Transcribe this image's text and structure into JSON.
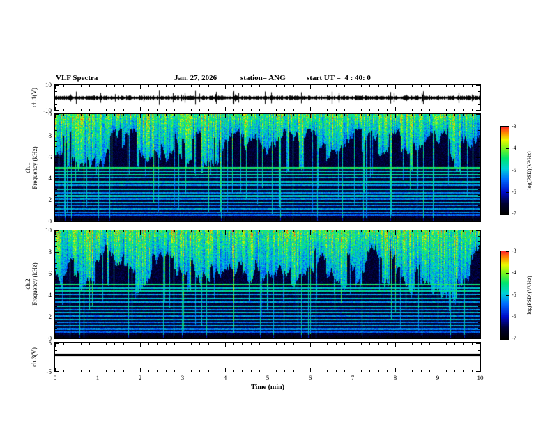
{
  "header": {
    "title": "VLF Spectra",
    "date": "Jan. 27, 2026",
    "station": "station= ANG",
    "start_ut": "start UT =  4 : 40: 0"
  },
  "axes": {
    "x_label": "Time (min)",
    "x_ticks": [
      "0",
      "1",
      "2",
      "3",
      "4",
      "5",
      "6",
      "7",
      "8",
      "9",
      "10"
    ],
    "x_minor_per_major": 5,
    "ch1_wave": {
      "label": "ch.1(V)",
      "ylim": [
        -10,
        10
      ],
      "major_values": [
        10,
        0,
        -10
      ],
      "minor_values": [
        5,
        -5
      ],
      "labeled_values": [
        10,
        -10
      ],
      "tick_labels": [
        "10",
        "-10"
      ]
    },
    "ch1_spec": {
      "label_line1": "ch.1",
      "label_line2": "Frequency (kHz)",
      "ylim": [
        0,
        10
      ],
      "major_values": [
        0,
        2,
        4,
        6,
        8,
        10
      ],
      "minor_step": 0.5,
      "labeled_values": [
        10,
        8,
        6,
        4,
        2,
        0
      ],
      "tick_labels": [
        "10",
        "8",
        "6",
        "4",
        "2",
        "0"
      ]
    },
    "ch2_spec": {
      "label_line1": "ch.2",
      "label_line2": "Frequency (kHz)",
      "ylim": [
        0,
        10
      ],
      "major_values": [
        0,
        2,
        4,
        6,
        8,
        10
      ],
      "minor_step": 0.5,
      "labeled_values": [
        10,
        8,
        6,
        4,
        2,
        0
      ],
      "tick_labels": [
        "10",
        "8",
        "6",
        "4",
        "2",
        "0"
      ]
    },
    "ch3_wave": {
      "label": "ch.3(V)",
      "ylim": [
        -5,
        5
      ],
      "major_values": [
        5,
        0,
        -5
      ],
      "minor_values": [
        2.5,
        -2.5
      ],
      "labeled_values": [
        5,
        -5
      ],
      "tick_labels": [
        "5",
        "-5"
      ]
    }
  },
  "colorbar": {
    "label": "log(PSD)(V²/Hz)",
    "tick_labels": [
      "-3",
      "-4",
      "-5",
      "-6",
      "-7"
    ],
    "tick_values": [
      -3,
      -4,
      -5,
      -6,
      -7
    ],
    "range": [
      -7,
      -3
    ]
  },
  "chart_data": [
    {
      "type": "line",
      "name": "ch1_waveform",
      "ylabel": "ch.1(V)",
      "xlabel": "Time (min)",
      "xlim": [
        0,
        10
      ],
      "ylim": [
        -10,
        10
      ],
      "baseline": 0,
      "noise_amplitude_v": 1.5,
      "trace_style": "noise",
      "description": "Continuous broadband noise trace centered on 0 V, ~±1.5 V envelope with sparse spikes to roughly ±6 V across the full 10 minutes."
    },
    {
      "type": "heatmap",
      "name": "ch1_spectrogram",
      "channel": "ch.1",
      "ylabel": "Frequency (kHz)",
      "xlabel": "Time (min)",
      "xlim": [
        0,
        10
      ],
      "ylim": [
        0,
        10
      ],
      "value_label": "log(PSD)(V²/Hz)",
      "value_range": [
        -7,
        -3
      ],
      "emission_lines_khz": [
        {
          "f": 5.0,
          "v": 0.62
        },
        {
          "f": 4.7,
          "v": 0.5
        },
        {
          "f": 4.4,
          "v": 0.55
        },
        {
          "f": 4.1,
          "v": 0.45
        },
        {
          "f": 3.7,
          "v": 0.5
        },
        {
          "f": 3.4,
          "v": 0.44
        },
        {
          "f": 3.0,
          "v": 0.5
        },
        {
          "f": 2.7,
          "v": 0.42
        },
        {
          "f": 2.4,
          "v": 0.48
        },
        {
          "f": 2.1,
          "v": 0.42
        },
        {
          "f": 1.8,
          "v": 0.46
        },
        {
          "f": 1.5,
          "v": 0.4
        },
        {
          "f": 1.2,
          "v": 0.44
        },
        {
          "f": 0.9,
          "v": 0.4
        },
        {
          "f": 0.6,
          "v": 0.36
        }
      ],
      "description": "Dense vertical sferic/tweek streaks (cyan-green-yellow, PSD ~1e-5 to 1e-3) filling ~5-10 kHz with variable lower extent; dark blue/black background below ~5 kHz (PSD ~1e-7) crossed by narrow horizontal emission lines and occasional full-height impulses."
    },
    {
      "type": "heatmap",
      "name": "ch2_spectrogram",
      "channel": "ch.2",
      "ylabel": "Frequency (kHz)",
      "xlabel": "Time (min)",
      "xlim": [
        0,
        10
      ],
      "ylim": [
        0,
        10
      ],
      "value_label": "log(PSD)(V²/Hz)",
      "value_range": [
        -7,
        -3
      ],
      "emission_lines_khz": [
        {
          "f": 5.0,
          "v": 0.62
        },
        {
          "f": 4.7,
          "v": 0.5
        },
        {
          "f": 4.4,
          "v": 0.55
        },
        {
          "f": 4.1,
          "v": 0.45
        },
        {
          "f": 3.7,
          "v": 0.5
        },
        {
          "f": 3.4,
          "v": 0.44
        },
        {
          "f": 3.0,
          "v": 0.5
        },
        {
          "f": 2.7,
          "v": 0.42
        },
        {
          "f": 2.4,
          "v": 0.48
        },
        {
          "f": 2.1,
          "v": 0.42
        },
        {
          "f": 1.8,
          "v": 0.46
        },
        {
          "f": 1.5,
          "v": 0.4
        },
        {
          "f": 1.2,
          "v": 0.44
        },
        {
          "f": 0.9,
          "v": 0.4
        },
        {
          "f": 0.6,
          "v": 0.36
        }
      ],
      "description": "Same structure as ch.1 spectrogram: bright streaked 5-10 kHz band, dark sub-5 kHz region with horizontal emission lines."
    },
    {
      "type": "line",
      "name": "ch3_waveform",
      "ylabel": "ch.3(V)",
      "xlim": [
        0,
        10
      ],
      "ylim": [
        -5,
        5
      ],
      "baseline": 0.8,
      "noise_amplitude_v": 0,
      "trace_style": "thick-flat",
      "description": "Flat thick black trace at a constant level slightly above 0 V for the whole record."
    }
  ]
}
